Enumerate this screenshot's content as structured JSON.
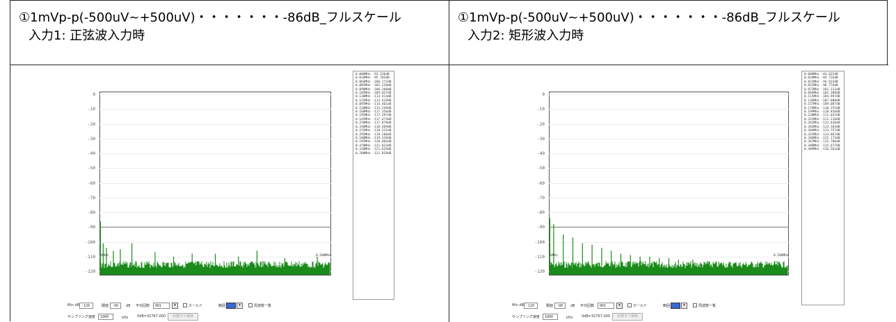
{
  "headers": [
    {
      "line1": "①1mVp-p(-500uV~+500uV)・・・・・・・-86dB_フルスケール",
      "line2": "入力1:  正弦波入力時"
    },
    {
      "line1": "①1mVp-p(-500uV~+500uV)・・・・・・・-86dB_フルスケール",
      "line2": "入力2:  矩形波入力時"
    }
  ],
  "panels": [
    {
      "y_ticks": [
        "0",
        "-10",
        "-20",
        "-30",
        "-40",
        "-50",
        "-60",
        "-70",
        "-80",
        "-90",
        "-100",
        "-110",
        "-120"
      ],
      "x_start": "0MHz",
      "x_end": "0.500MHz",
      "threshold_db": -90,
      "legend": [
        "0.000MHz -93.536dB",
        "0.010MHz -95.703dB",
        "0.064MHz -100.272dB",
        "0.085MHz -102.220dB",
        "0.090MHz -106.360dB",
        "0.105MHz -109.027dB",
        "0.130MHz -113.414dB",
        "0.125MHz -113.419dB",
        "0.095MHz -114.461dB",
        "0.120MHz -115.249dB",
        "0.160MHz -117.356dB",
        "0.195MHz -117.397dB",
        "0.145MHz -117.474dB",
        "0.250MHz -117.878dB",
        "0.340MHz -118.469dB",
        "0.155MHz -118.531dB",
        "0.295MHz -119.260dB",
        "0.100MHz -119.339dB",
        "0.195MHz -120.066dB",
        "0.470MHz -121.023dB",
        "0.330MHz -121.629dB",
        "0.200MHz -121.828dB"
      ],
      "controls": {
        "min_label": "Min dB",
        "min_value": "-120",
        "thr_label": "閾値",
        "thr_value": "-90",
        "unit_db": "dB",
        "avg_label": "平均回数",
        "avg_value": "001",
        "hold_label": "ホールド",
        "range_label": "範囲",
        "list_label": "周波数一覧",
        "rate_label": "サンプリング速度",
        "rate_value": "1000",
        "rate_unit": "kHz",
        "zero_db": "0dB=32767.000",
        "button": "外部ラフ保存"
      }
    },
    {
      "y_ticks": [
        "0",
        "-10",
        "-20",
        "-30",
        "-40",
        "-50",
        "-60",
        "-70",
        "-80",
        "-90",
        "-100",
        "-110",
        "-120"
      ],
      "x_start": "0MHz",
      "x_end": "0.500MHz",
      "threshold_db": -90,
      "legend": [
        "0.000MHz -83.625dB",
        "0.010MHz -84.726dB",
        "0.031MHz -94.624dB",
        "0.052MHz -96.776dB",
        "0.073MHz -101.311dB",
        "0.094MHz -102.309dB",
        "0.115MHz -104.997dB",
        "0.136MHz -107.008dB",
        "0.157MHz -109.087dB",
        "0.178MHz -110.255dB",
        "0.199MHz -110.826dB",
        "0.220MHz -111.047dB",
        "0.241MHz -111.116dB",
        "0.262MHz -112.636dB",
        "0.283MHz -113.103dB",
        "0.304MHz -113.757dB",
        "0.325MHz -113.867dB",
        "0.346MHz -115.174dB",
        "0.367MHz -115.786dB",
        "0.388MHz -115.677dB",
        "0.409MHz -116.561dB"
      ],
      "controls": {
        "min_label": "Min dB",
        "min_value": "-120",
        "thr_label": "閾値",
        "thr_value": "-90",
        "unit_db": "dB",
        "avg_label": "平均回数",
        "avg_value": "001",
        "hold_label": "ホールド",
        "range_label": "範囲",
        "list_label": "周波数一覧",
        "rate_label": "サンプリング速度",
        "rate_value": "1000",
        "rate_unit": "kHz",
        "zero_db": "0dB=32767.000",
        "button": "外部ラフ保存"
      }
    }
  ],
  "chart_data": [
    {
      "type": "bar",
      "xlabel": "",
      "ylabel": "",
      "xlim": [
        0,
        0.5
      ],
      "ylim": [
        -120,
        0
      ],
      "noise_floor_db": -114,
      "threshold_db": -90,
      "colors": {
        "spectrum": "#1a8a1a",
        "frame": "#555555"
      },
      "peaks": [
        {
          "x": 0.002,
          "y": -86
        },
        {
          "x": 0.008,
          "y": -101
        },
        {
          "x": 0.015,
          "y": -104
        },
        {
          "x": 0.03,
          "y": -106
        },
        {
          "x": 0.045,
          "y": -105
        },
        {
          "x": 0.07,
          "y": -101
        },
        {
          "x": 0.12,
          "y": -107
        },
        {
          "x": 0.16,
          "y": -110
        },
        {
          "x": 0.2,
          "y": -108
        },
        {
          "x": 0.25,
          "y": -108
        },
        {
          "x": 0.3,
          "y": -110
        },
        {
          "x": 0.34,
          "y": -106
        },
        {
          "x": 0.4,
          "y": -111
        },
        {
          "x": 0.47,
          "y": -110
        }
      ]
    },
    {
      "type": "bar",
      "xlabel": "",
      "ylabel": "",
      "xlim": [
        0,
        0.5
      ],
      "ylim": [
        -120,
        0
      ],
      "noise_floor_db": -114,
      "threshold_db": -90,
      "colors": {
        "spectrum": "#1a8a1a",
        "frame": "#555555"
      },
      "peaks": [
        {
          "x": 0.002,
          "y": -84
        },
        {
          "x": 0.01,
          "y": -88
        },
        {
          "x": 0.03,
          "y": -95
        },
        {
          "x": 0.05,
          "y": -97
        },
        {
          "x": 0.07,
          "y": -101
        },
        {
          "x": 0.09,
          "y": -102
        },
        {
          "x": 0.11,
          "y": -104
        },
        {
          "x": 0.13,
          "y": -106
        },
        {
          "x": 0.15,
          "y": -108
        },
        {
          "x": 0.17,
          "y": -109
        },
        {
          "x": 0.19,
          "y": -110
        },
        {
          "x": 0.21,
          "y": -110
        },
        {
          "x": 0.23,
          "y": -111
        },
        {
          "x": 0.25,
          "y": -111
        },
        {
          "x": 0.27,
          "y": -112
        },
        {
          "x": 0.3,
          "y": -112
        },
        {
          "x": 0.33,
          "y": -113
        },
        {
          "x": 0.36,
          "y": -114
        },
        {
          "x": 0.39,
          "y": -114
        },
        {
          "x": 0.42,
          "y": -115
        },
        {
          "x": 0.46,
          "y": -115
        }
      ]
    }
  ]
}
